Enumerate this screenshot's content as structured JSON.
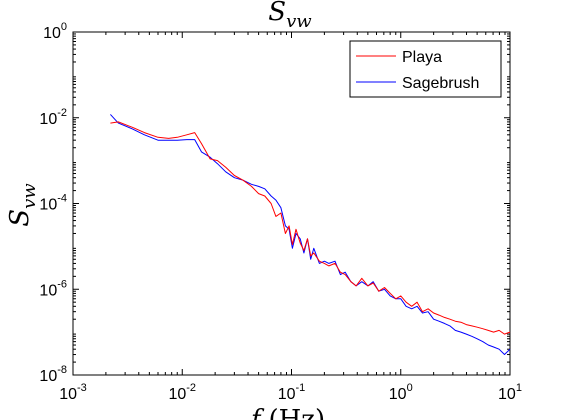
{
  "chart_data": {
    "type": "line",
    "title": "S_vw",
    "title_parts": {
      "base": "S",
      "sub": "vw"
    },
    "xlabel": "f (Hz)",
    "xlabel_parts": {
      "base": "f",
      "rest": "(Hz)"
    },
    "ylabel": "S_vw",
    "ylabel_parts": {
      "base": "S",
      "sub": "vw"
    },
    "x_scale": "log",
    "y_scale": "log",
    "xlim": [
      0.001,
      10
    ],
    "ylim": [
      1e-08,
      1
    ],
    "x_ticks": [
      {
        "base": "10",
        "exp": "-3",
        "value": 0.001
      },
      {
        "base": "10",
        "exp": "-2",
        "value": 0.01
      },
      {
        "base": "10",
        "exp": "-1",
        "value": 0.1
      },
      {
        "base": "10",
        "exp": "0",
        "value": 1
      },
      {
        "base": "10",
        "exp": "1",
        "value": 10
      }
    ],
    "y_ticks": [
      {
        "base": "10",
        "exp": "-8",
        "value": 1e-08
      },
      {
        "base": "10",
        "exp": "-6",
        "value": 1e-06
      },
      {
        "base": "10",
        "exp": "-4",
        "value": 0.0001
      },
      {
        "base": "10",
        "exp": "-2",
        "value": 0.01
      },
      {
        "base": "10",
        "exp": "0",
        "value": 1
      }
    ],
    "grid": false,
    "legend_position": "top-right",
    "series": [
      {
        "name": "Playa",
        "color": "#ff0000",
        "x": [
          0.0022,
          0.0026,
          0.0035,
          0.0045,
          0.006,
          0.0075,
          0.009,
          0.011,
          0.013,
          0.015,
          0.018,
          0.021,
          0.025,
          0.03,
          0.036,
          0.043,
          0.05,
          0.057,
          0.065,
          0.072,
          0.08,
          0.088,
          0.095,
          0.102,
          0.11,
          0.12,
          0.13,
          0.14,
          0.15,
          0.16,
          0.18,
          0.2,
          0.22,
          0.25,
          0.28,
          0.31,
          0.35,
          0.39,
          0.44,
          0.5,
          0.56,
          0.63,
          0.71,
          0.8,
          0.9,
          1.0,
          1.12,
          1.26,
          1.41,
          1.58,
          1.78,
          2.0,
          2.24,
          2.51,
          2.82,
          3.16,
          3.55,
          3.98,
          4.47,
          5.01,
          5.62,
          6.31,
          7.08,
          7.94,
          8.91,
          10.0
        ],
        "y": [
          0.0075,
          0.008,
          0.006,
          0.0045,
          0.0035,
          0.0033,
          0.0035,
          0.004,
          0.0045,
          0.0025,
          0.0011,
          0.001,
          0.0007,
          0.00045,
          0.00035,
          0.00025,
          0.00017,
          0.00015,
          0.0001,
          5e-05,
          6e-05,
          2e-05,
          3e-05,
          1.1e-05,
          2.5e-05,
          1.2e-05,
          8e-06,
          1.5e-05,
          6e-06,
          7e-06,
          4.5e-06,
          4e-06,
          3.5e-06,
          4e-06,
          2.5e-06,
          2.2e-06,
          1.5e-06,
          1.2e-06,
          1.8e-06,
          1.2e-06,
          1.4e-06,
          9e-07,
          1.1e-06,
          8e-07,
          6e-07,
          7e-07,
          5e-07,
          4e-07,
          5e-07,
          3e-07,
          3.5e-07,
          2.8e-07,
          2.5e-07,
          2.2e-07,
          2e-07,
          1.8e-07,
          1.7e-07,
          1.5e-07,
          1.4e-07,
          1.3e-07,
          1.2e-07,
          1.1e-07,
          1e-07,
          1.1e-07,
          9e-08,
          1e-07
        ]
      },
      {
        "name": "Sagebrush",
        "color": "#0000ff",
        "x": [
          0.0022,
          0.0026,
          0.0035,
          0.0045,
          0.006,
          0.0075,
          0.009,
          0.011,
          0.013,
          0.015,
          0.018,
          0.021,
          0.025,
          0.03,
          0.036,
          0.043,
          0.05,
          0.057,
          0.065,
          0.072,
          0.08,
          0.088,
          0.095,
          0.102,
          0.11,
          0.12,
          0.13,
          0.14,
          0.15,
          0.16,
          0.18,
          0.2,
          0.22,
          0.25,
          0.28,
          0.31,
          0.35,
          0.39,
          0.44,
          0.5,
          0.56,
          0.63,
          0.71,
          0.8,
          0.9,
          1.0,
          1.12,
          1.26,
          1.41,
          1.58,
          1.78,
          2.0,
          2.24,
          2.51,
          2.82,
          3.16,
          3.55,
          3.98,
          4.47,
          5.01,
          5.62,
          6.31,
          7.08,
          7.94,
          8.91,
          10.0
        ],
        "y": [
          0.012,
          0.0075,
          0.0055,
          0.004,
          0.003,
          0.003,
          0.003,
          0.0031,
          0.0031,
          0.0016,
          0.0012,
          0.00085,
          0.00055,
          0.0004,
          0.00035,
          0.00028,
          0.00025,
          0.00022,
          0.00015,
          0.00012,
          8e-05,
          3e-05,
          2.5e-05,
          9e-06,
          2e-05,
          1.5e-05,
          7e-06,
          1.5e-05,
          5e-06,
          9e-06,
          4e-06,
          4.5e-06,
          4e-06,
          4.5e-06,
          2.2e-06,
          2.5e-06,
          1.5e-06,
          1.2e-06,
          1.5e-06,
          1.2e-06,
          1.5e-06,
          9e-07,
          1e-06,
          7e-07,
          6e-07,
          6e-07,
          4e-07,
          3.5e-07,
          4e-07,
          2.8e-07,
          3e-07,
          2e-07,
          1.8e-07,
          1.6e-07,
          1.4e-07,
          1.1e-07,
          1e-07,
          9e-08,
          8e-08,
          7e-08,
          6e-08,
          5e-08,
          4.5e-08,
          4e-08,
          3e-08,
          4e-08
        ]
      }
    ]
  }
}
